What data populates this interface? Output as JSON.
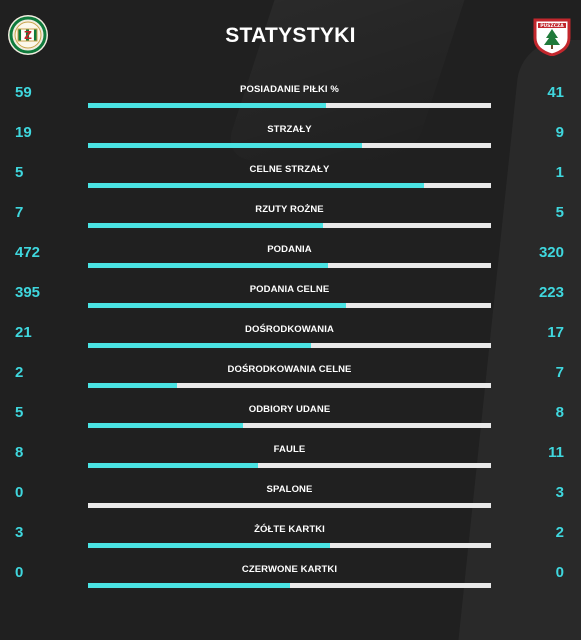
{
  "title": "STATYSTYKI",
  "colors": {
    "background": "#202020",
    "accent": "#4ae3e3",
    "value_text": "#3fd7de",
    "bar_track": "#e9e9e9"
  },
  "teams": {
    "home": {
      "crest_icon": "home-club-crest",
      "crest_text": "Z"
    },
    "away": {
      "crest_icon": "away-club-crest",
      "crest_text": "PUSZCZA"
    }
  },
  "stats": [
    {
      "label": "POSIADANIE PIŁKI %",
      "home": "59",
      "away": "41",
      "home_fraction": 0.59
    },
    {
      "label": "STRZAŁY",
      "home": "19",
      "away": "9",
      "home_fraction": 0.679
    },
    {
      "label": "CELNE STRZAŁY",
      "home": "5",
      "away": "1",
      "home_fraction": 0.833
    },
    {
      "label": "RZUTY ROŻNE",
      "home": "7",
      "away": "5",
      "home_fraction": 0.583
    },
    {
      "label": "PODANIA",
      "home": "472",
      "away": "320",
      "home_fraction": 0.596
    },
    {
      "label": "PODANIA CELNE",
      "home": "395",
      "away": "223",
      "home_fraction": 0.639
    },
    {
      "label": "DOŚRODKOWANIA",
      "home": "21",
      "away": "17",
      "home_fraction": 0.553
    },
    {
      "label": "DOŚRODKOWANIA CELNE",
      "home": "2",
      "away": "7",
      "home_fraction": 0.222
    },
    {
      "label": "ODBIORY UDANE",
      "home": "5",
      "away": "8",
      "home_fraction": 0.385
    },
    {
      "label": "FAULE",
      "home": "8",
      "away": "11",
      "home_fraction": 0.421
    },
    {
      "label": "SPALONE",
      "home": "0",
      "away": "3",
      "home_fraction": 0.0
    },
    {
      "label": "ŻÓŁTE KARTKI",
      "home": "3",
      "away": "2",
      "home_fraction": 0.6
    },
    {
      "label": "CZERWONE KARTKI",
      "home": "0",
      "away": "0",
      "home_fraction": 0.5
    }
  ]
}
